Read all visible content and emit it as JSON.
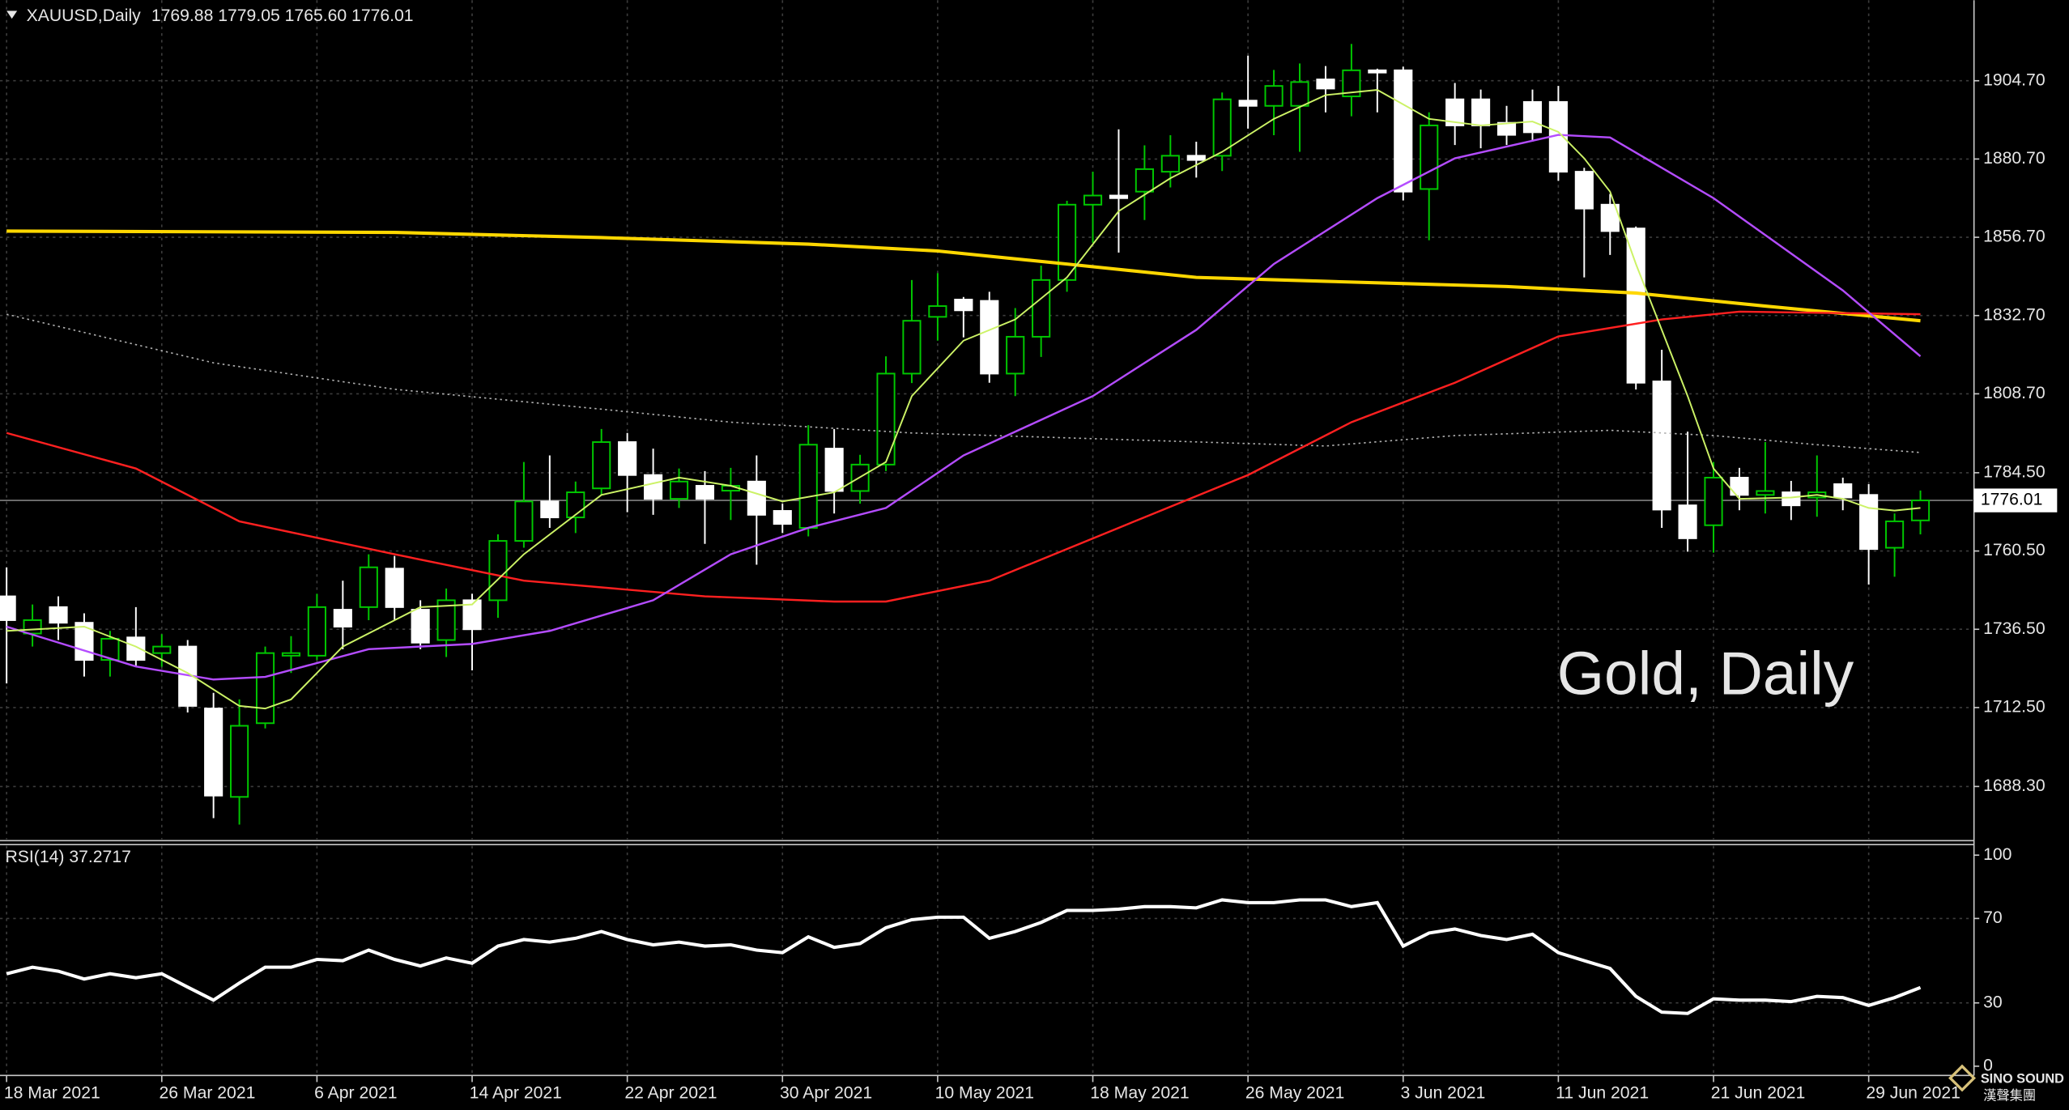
{
  "chart_data": [
    {
      "type": "candlestick",
      "title": "XAUUSD,Daily",
      "subtitle": "1769.88 1779.05 1765.60 1776.01",
      "annotation": "Gold, Daily",
      "categories": [
        "18 Mar 2021",
        null,
        null,
        null,
        null,
        null,
        "26 Mar 2021",
        null,
        null,
        null,
        null,
        null,
        "6 Apr 2021",
        null,
        null,
        null,
        null,
        null,
        "14 Apr 2021",
        null,
        null,
        null,
        null,
        null,
        "22 Apr 2021",
        null,
        null,
        null,
        null,
        null,
        "30 Apr 2021",
        null,
        null,
        null,
        null,
        null,
        "10 May 2021",
        null,
        null,
        null,
        null,
        null,
        "18 May 2021",
        null,
        null,
        null,
        null,
        null,
        "26 May 2021",
        null,
        null,
        null,
        null,
        null,
        "3 Jun 2021",
        null,
        null,
        null,
        null,
        null,
        "11 Jun 2021",
        null,
        null,
        null,
        null,
        null,
        "21 Jun 2021",
        null,
        null,
        null,
        null,
        null,
        "29 Jun 2021",
        null,
        null
      ],
      "open": [
        1746.6,
        1735.2,
        1743.3,
        1738.5,
        1727.1,
        1734.0,
        1729.2,
        1731.2,
        1712.2,
        1685.1,
        1707.7,
        1728.4,
        1728.4,
        1742.5,
        1743.3,
        1755.1,
        1742.5,
        1733.2,
        1745.4,
        1745.4,
        1763.6,
        1775.7,
        1770.8,
        1779.7,
        1793.9,
        1783.8,
        1776.5,
        1780.5,
        1779.0,
        1781.8,
        1772.8,
        1767.6,
        1791.9,
        1778.9,
        1787.0,
        1814.9,
        1832.3,
        1837.6,
        1837.2,
        1814.9,
        1826.2,
        1843.6,
        1866.7,
        1869.5,
        1870.7,
        1876.8,
        1881.7,
        1881.7,
        1898.6,
        1897.0,
        1897.0,
        1905.1,
        1899.9,
        1907.9,
        1907.9,
        1871.5,
        1899.0,
        1899.0,
        1891.8,
        1898.2,
        1898.2,
        1876.8,
        1866.7,
        1859.4,
        1812.5,
        1774.5,
        1768.4,
        1783.0,
        1777.7,
        1778.5,
        1776.9,
        1781.0,
        1777.7,
        1761.5,
        1769.88
      ],
      "high": [
        1755.5,
        1744.1,
        1746.6,
        1741.4,
        1736.0,
        1743.3,
        1735.0,
        1733.2,
        1717.0,
        1715.0,
        1731.2,
        1734.4,
        1747.4,
        1751.4,
        1759.5,
        1759.0,
        1745.4,
        1749.0,
        1747.4,
        1765.6,
        1787.8,
        1789.8,
        1781.8,
        1797.9,
        1796.7,
        1791.9,
        1785.8,
        1785.0,
        1786.0,
        1789.8,
        1775.0,
        1799.1,
        1797.9,
        1790.0,
        1820.2,
        1843.6,
        1845.7,
        1838.4,
        1840.0,
        1835.0,
        1848.0,
        1867.9,
        1876.8,
        1889.8,
        1884.9,
        1888.0,
        1886.0,
        1901.1,
        1912.4,
        1908.0,
        1910.0,
        1909.2,
        1916.0,
        1908.4,
        1909.0,
        1895.0,
        1904.0,
        1902.0,
        1897.0,
        1902.0,
        1903.1,
        1878.0,
        1870.0,
        1860.0,
        1822.2,
        1797.1,
        1787.8,
        1786.0,
        1793.9,
        1782.0,
        1789.8,
        1783.0,
        1781.0,
        1772.0,
        1779.05
      ],
      "low": [
        1719.9,
        1731.2,
        1733.2,
        1722.0,
        1722.0,
        1725.1,
        1725.0,
        1711.0,
        1678.6,
        1676.6,
        1706.1,
        1723.1,
        1727.1,
        1730.4,
        1739.3,
        1739.3,
        1730.4,
        1728.0,
        1723.9,
        1740.0,
        1761.5,
        1767.6,
        1766.0,
        1777.7,
        1772.4,
        1771.6,
        1773.7,
        1762.7,
        1770.0,
        1756.3,
        1766.0,
        1765.0,
        1772.0,
        1775.0,
        1785.0,
        1812.0,
        1825.0,
        1826.0,
        1812.1,
        1808.0,
        1820.0,
        1840.0,
        1855.0,
        1852.0,
        1862.0,
        1872.0,
        1875.0,
        1877.0,
        1890.0,
        1888.0,
        1882.9,
        1895.0,
        1893.8,
        1895.0,
        1868.0,
        1855.8,
        1885.0,
        1884.0,
        1885.0,
        1886.0,
        1874.0,
        1844.4,
        1851.3,
        1810.0,
        1767.6,
        1760.3,
        1760.0,
        1773.0,
        1772.0,
        1770.0,
        1771.0,
        1773.0,
        1750.2,
        1752.6,
        1765.6
      ],
      "close": [
        1739.3,
        1739.3,
        1738.5,
        1727.1,
        1733.6,
        1727.1,
        1731.2,
        1713.0,
        1685.5,
        1706.9,
        1729.2,
        1729.2,
        1743.3,
        1737.3,
        1755.5,
        1743.3,
        1732.4,
        1745.4,
        1736.5,
        1763.6,
        1775.7,
        1770.8,
        1778.5,
        1793.9,
        1783.8,
        1776.5,
        1781.8,
        1776.5,
        1780.5,
        1771.6,
        1768.8,
        1793.1,
        1778.9,
        1787.0,
        1814.9,
        1831.1,
        1835.6,
        1834.3,
        1814.9,
        1826.2,
        1843.6,
        1866.7,
        1869.5,
        1868.7,
        1877.6,
        1881.7,
        1880.4,
        1899.0,
        1897.0,
        1903.1,
        1904.3,
        1902.3,
        1907.9,
        1907.2,
        1870.7,
        1891.0,
        1891.0,
        1891.0,
        1888.1,
        1888.9,
        1876.8,
        1865.5,
        1858.6,
        1812.1,
        1773.2,
        1764.4,
        1783.0,
        1777.7,
        1778.9,
        1774.5,
        1778.5,
        1776.9,
        1761.1,
        1769.6,
        1776.01
      ],
      "up_color": "#00c800",
      "down_color": "#ffffff",
      "series": [
        {
          "color": "#b0b0b0",
          "width": 1,
          "line_style": "dotted",
          "x": [
            0,
            8,
            15,
            23,
            28,
            35,
            43,
            51,
            56,
            62,
            66,
            70,
            74
          ],
          "values": [
            1833.1,
            1818.2,
            1810.1,
            1804.0,
            1800.0,
            1796.7,
            1794.7,
            1792.7,
            1795.9,
            1797.5,
            1795.9,
            1793.1,
            1790.7
          ]
        },
        {
          "color": "#ffd700",
          "width": 2.5,
          "line_style": "solid",
          "x": [
            0,
            15,
            23,
            31,
            36,
            41,
            46,
            51,
            58,
            63,
            68,
            74
          ],
          "values": [
            1858.6,
            1858.2,
            1856.6,
            1854.6,
            1852.5,
            1848.5,
            1844.4,
            1843.2,
            1841.6,
            1839.6,
            1835.6,
            1831.1
          ]
        },
        {
          "color": "#ff2020",
          "width": 1.5,
          "line_style": "solid",
          "x": [
            0,
            5,
            9,
            15,
            20,
            27,
            32,
            34,
            38,
            43,
            48,
            52,
            56,
            60,
            64,
            67,
            74
          ],
          "values": [
            1796.7,
            1785.8,
            1769.6,
            1759.5,
            1751.4,
            1746.6,
            1745.0,
            1745.0,
            1751.4,
            1767.6,
            1783.8,
            1800.0,
            1812.1,
            1826.3,
            1831.5,
            1833.9,
            1833.1
          ]
        },
        {
          "color": "#b44cff",
          "width": 1.5,
          "line_style": "solid",
          "x": [
            0,
            5,
            8,
            10,
            14,
            18,
            21,
            25,
            28,
            31,
            34,
            37,
            42,
            46,
            49,
            53,
            56,
            60,
            62,
            66,
            71,
            74
          ],
          "values": [
            1737.3,
            1725.1,
            1721.1,
            1721.9,
            1730.4,
            1732.0,
            1736.0,
            1745.4,
            1759.5,
            1767.6,
            1773.7,
            1789.8,
            1808.0,
            1828.3,
            1848.5,
            1868.7,
            1880.9,
            1888.1,
            1887.3,
            1868.7,
            1840.4,
            1820.2
          ]
        },
        {
          "color": "#ccf266",
          "width": 1.2,
          "line_style": "solid",
          "x": [
            0,
            3,
            5,
            7,
            9,
            10,
            11,
            13,
            16,
            18,
            20,
            23,
            26,
            28,
            30,
            32,
            34,
            35,
            37,
            39,
            41,
            43,
            45,
            47,
            49,
            51,
            53,
            55,
            57,
            59,
            60,
            61,
            62,
            63,
            64,
            65,
            66,
            67,
            69,
            70,
            71,
            72,
            73,
            74
          ],
          "values": [
            1736.0,
            1737.3,
            1731.2,
            1723.1,
            1713.0,
            1712.2,
            1715.0,
            1731.2,
            1743.3,
            1744.1,
            1759.5,
            1777.7,
            1783.0,
            1780.5,
            1775.7,
            1778.5,
            1787.8,
            1808.0,
            1825.0,
            1831.5,
            1844.4,
            1864.7,
            1874.8,
            1882.9,
            1893.0,
            1900.3,
            1901.9,
            1893.0,
            1891.0,
            1892.2,
            1889.0,
            1880.9,
            1870.7,
            1848.5,
            1828.3,
            1808.0,
            1785.8,
            1776.5,
            1776.9,
            1777.7,
            1776.5,
            1773.7,
            1772.9,
            1773.7
          ]
        }
      ],
      "last_price": 1776.01,
      "ylim": [
        1672.1,
        1929.38
      ],
      "yticks": [
        {
          "value": 1904.7,
          "label": "1904.70"
        },
        {
          "value": 1880.7,
          "label": "1880.70"
        },
        {
          "value": 1856.7,
          "label": "1856.70"
        },
        {
          "value": 1832.7,
          "label": "1832.70"
        },
        {
          "value": 1808.7,
          "label": "1808.70"
        },
        {
          "value": 1784.5,
          "label": "1784.50"
        },
        {
          "value": 1760.5,
          "label": "1760.50"
        },
        {
          "value": 1736.5,
          "label": "1736.50"
        },
        {
          "value": 1712.5,
          "label": "1712.50"
        },
        {
          "value": 1688.3,
          "label": "1688.30"
        }
      ],
      "grid": true
    },
    {
      "type": "line",
      "title": "RSI(14) 37.2717",
      "series": [
        {
          "color": "#ffffff",
          "values": [
            43.8,
            46.9,
            45,
            41.3,
            43.8,
            41.9,
            43.8,
            37.5,
            31.3,
            39.4,
            46.9,
            46.9,
            50.6,
            50,
            55,
            50.6,
            47.5,
            51.3,
            48.8,
            56.9,
            60,
            58.8,
            60.6,
            63.8,
            60,
            57.5,
            58.8,
            56.9,
            57.5,
            55,
            53.8,
            61.3,
            56.3,
            58.1,
            65.6,
            69.4,
            70.6,
            70.6,
            60.6,
            63.8,
            68.1,
            73.8,
            73.8,
            74.4,
            75.6,
            75.6,
            75,
            78.8,
            77.5,
            77.5,
            78.8,
            78.8,
            75.6,
            77.5,
            56.9,
            63.1,
            65,
            61.9,
            60,
            62.5,
            53.8,
            50,
            46.3,
            33.1,
            25.6,
            25,
            31.9,
            31.3,
            31.3,
            30.6,
            33.1,
            32.5,
            28.8,
            32.5,
            37.2717
          ]
        }
      ],
      "ylim": [
        0,
        100
      ],
      "yticks": [
        100,
        70,
        30,
        0
      ],
      "grid": true
    }
  ],
  "logo": {
    "name": "SINO SOUND",
    "sub": "漢聲集團"
  }
}
